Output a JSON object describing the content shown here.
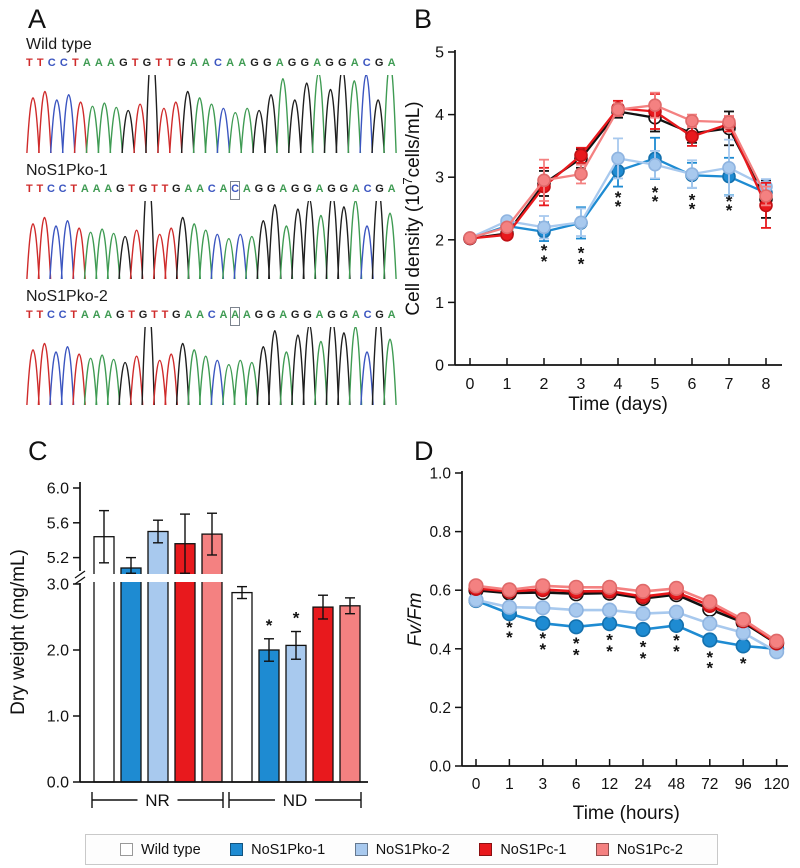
{
  "panel_labels": {
    "a": "A",
    "b": "B",
    "c": "C",
    "d": "D"
  },
  "palette": {
    "wild_type": "#111111",
    "ko1": "#1e8bd2",
    "ko2": "#a8c9ee",
    "pc1": "#e8191d",
    "pc2": "#f48181",
    "asterisk_dark": "#2287d3",
    "asterisk_light": "#a8c9ee"
  },
  "panel_a": {
    "base_colors": {
      "A": "#3f9b53",
      "C": "#3b55c0",
      "G": "#1f1f1f",
      "T": "#cf2b2b"
    },
    "tracks": [
      {
        "name": "Wild type",
        "sequence": "TTCCTAAAGTGTTGAACAAGGAGGAGGACGA",
        "boxed_index": -1
      },
      {
        "name": "NoS1Pko-1",
        "sequence": "TTCCTAAAGTGTTGAACACAGGAGGAGGACGA",
        "boxed_index": 18
      },
      {
        "name": "NoS1Pko-2",
        "sequence": "TTCCTAAAGTGTTGAACAAAGGAGGAGGACGA",
        "boxed_index": 18
      }
    ]
  },
  "chart_data": [
    {
      "id": "B",
      "type": "line",
      "title": "",
      "xlabel": "Time (days)",
      "ylabel": "Cell density (10⁷cells/mL)",
      "x": [
        0,
        1,
        2,
        3,
        4,
        5,
        6,
        7,
        8
      ],
      "ylim": [
        0,
        5
      ],
      "yticks": [
        0,
        1,
        2,
        3,
        4,
        5
      ],
      "grid": false,
      "series": [
        {
          "name": "Wild type",
          "color": "#111111",
          "fill": "#ffffff",
          "stroke": "#111111",
          "values": [
            2.02,
            2.1,
            2.9,
            3.3,
            4.05,
            3.95,
            3.7,
            3.78,
            2.65
          ],
          "errors": [
            0.03,
            0.05,
            0.2,
            0.15,
            0.1,
            0.22,
            0.15,
            0.27,
            0.3
          ]
        },
        {
          "name": "NoS1Pko-1",
          "color": "#1e8bd2",
          "fill": "#1e8bd2",
          "stroke": "#1470ad",
          "values": [
            2.02,
            2.22,
            2.13,
            2.27,
            3.1,
            3.3,
            3.03,
            3.01,
            2.75
          ],
          "errors": [
            0.03,
            0.05,
            0.15,
            0.25,
            0.25,
            0.33,
            0.2,
            0.3,
            0.15
          ]
        },
        {
          "name": "NoS1Pko-2",
          "color": "#a8c9ee",
          "fill": "#a8c9ee",
          "stroke": "#8fb4e0",
          "values": [
            2.03,
            2.3,
            2.2,
            2.28,
            3.3,
            3.2,
            3.05,
            3.15,
            2.85
          ],
          "errors": [
            0.03,
            0.05,
            0.18,
            0.22,
            0.32,
            0.22,
            0.22,
            0.45,
            0.12
          ]
        },
        {
          "name": "NoS1Pc-1",
          "color": "#e8191d",
          "fill": "#e8191d",
          "stroke": "#c01014",
          "values": [
            2.02,
            2.08,
            2.85,
            3.35,
            4.1,
            4.05,
            3.65,
            3.85,
            2.55
          ],
          "errors": [
            0.03,
            0.05,
            0.3,
            0.12,
            0.12,
            0.28,
            0.15,
            0.12,
            0.36
          ]
        },
        {
          "name": "NoS1Pc-2",
          "color": "#f48181",
          "fill": "#f48181",
          "stroke": "#df6a6a",
          "values": [
            2.03,
            2.2,
            2.95,
            3.05,
            4.08,
            4.15,
            3.9,
            3.88,
            2.7
          ],
          "errors": [
            0.03,
            0.05,
            0.33,
            0.15,
            0.1,
            0.2,
            0.1,
            0.1,
            0.15
          ]
        }
      ],
      "asterisks": [
        {
          "x": 2,
          "y": 1.84,
          "tone": "light"
        },
        {
          "x": 2,
          "y": 1.66,
          "tone": "dark"
        },
        {
          "x": 3,
          "y": 1.8,
          "tone": "light"
        },
        {
          "x": 3,
          "y": 1.62,
          "tone": "dark"
        },
        {
          "x": 4,
          "y": 2.68,
          "tone": "light"
        },
        {
          "x": 4,
          "y": 2.54,
          "tone": "dark"
        },
        {
          "x": 5,
          "y": 2.76,
          "tone": "light"
        },
        {
          "x": 5,
          "y": 2.62,
          "tone": "dark"
        },
        {
          "x": 6,
          "y": 2.64,
          "tone": "light"
        },
        {
          "x": 6,
          "y": 2.5,
          "tone": "dark"
        },
        {
          "x": 7,
          "y": 2.62,
          "tone": "light"
        },
        {
          "x": 7,
          "y": 2.48,
          "tone": "dark"
        }
      ]
    },
    {
      "id": "C",
      "type": "bar",
      "title": "",
      "xlabel": "",
      "ylabel": "Dry weight (mg/mL)",
      "groups": [
        "NR",
        "ND"
      ],
      "axis_break": {
        "lower_max": 3.2,
        "upper_min": 5.0
      },
      "yticks_lower": [
        0.0,
        1.0,
        2.0,
        3.0
      ],
      "yticks_upper": [
        5.2,
        5.6,
        6.0
      ],
      "ylim": [
        0,
        6
      ],
      "series": [
        {
          "name": "Wild type",
          "fill": "#ffffff",
          "values": [
            5.44,
            2.87
          ],
          "errors": [
            0.3,
            0.09
          ]
        },
        {
          "name": "NoS1Pko-1",
          "fill": "#1e8bd2",
          "values": [
            5.08,
            2.0
          ],
          "errors": [
            0.12,
            0.17
          ]
        },
        {
          "name": "NoS1Pko-2",
          "fill": "#a8c9ee",
          "values": [
            5.5,
            2.07
          ],
          "errors": [
            0.13,
            0.21
          ]
        },
        {
          "name": "NoS1Pc-1",
          "fill": "#e8191d",
          "values": [
            5.36,
            2.65
          ],
          "errors": [
            0.34,
            0.18
          ]
        },
        {
          "name": "NoS1Pc-2",
          "fill": "#f48181",
          "values": [
            5.47,
            2.67
          ],
          "errors": [
            0.24,
            0.12
          ]
        }
      ],
      "significance": [
        {
          "group_index": 1,
          "series_index": 1,
          "label": "*"
        },
        {
          "group_index": 1,
          "series_index": 2,
          "label": "*"
        }
      ]
    },
    {
      "id": "D",
      "type": "line",
      "title": "",
      "xlabel": "Time (hours)",
      "ylabel": "Fv/Fm",
      "x": [
        0,
        1,
        3,
        6,
        12,
        24,
        48,
        72,
        96,
        120
      ],
      "ylim": [
        0,
        1
      ],
      "yticks": [
        0.0,
        0.2,
        0.4,
        0.6,
        0.8,
        1.0
      ],
      "grid": false,
      "series": [
        {
          "name": "Wild type",
          "color": "#111111",
          "fill": "#ffffff",
          "stroke": "#111111",
          "values": [
            0.6,
            0.59,
            0.592,
            0.588,
            0.59,
            0.572,
            0.585,
            0.535,
            0.49,
            0.418
          ],
          "errors": [
            0.01,
            0.01,
            0.01,
            0.01,
            0.01,
            0.012,
            0.01,
            0.012,
            0.015,
            0.012
          ]
        },
        {
          "name": "NoS1Pko-1",
          "color": "#1e8bd2",
          "fill": "#1e8bd2",
          "stroke": "#1470ad",
          "values": [
            0.565,
            0.52,
            0.487,
            0.475,
            0.486,
            0.466,
            0.48,
            0.43,
            0.41,
            0.4
          ],
          "errors": [
            0.01,
            0.012,
            0.012,
            0.012,
            0.012,
            0.012,
            0.012,
            0.012,
            0.012,
            0.01
          ]
        },
        {
          "name": "NoS1Pko-2",
          "color": "#a8c9ee",
          "fill": "#a8c9ee",
          "stroke": "#8fb4e0",
          "values": [
            0.567,
            0.542,
            0.54,
            0.532,
            0.532,
            0.52,
            0.525,
            0.486,
            0.455,
            0.39
          ],
          "errors": [
            0.01,
            0.012,
            0.012,
            0.012,
            0.012,
            0.012,
            0.012,
            0.015,
            0.012,
            0.01
          ]
        },
        {
          "name": "NoS1Pc-1",
          "color": "#e8191d",
          "fill": "#e8191d",
          "stroke": "#c01014",
          "values": [
            0.606,
            0.596,
            0.602,
            0.596,
            0.597,
            0.578,
            0.592,
            0.548,
            0.496,
            0.42
          ],
          "errors": [
            0.01,
            0.01,
            0.01,
            0.01,
            0.01,
            0.01,
            0.01,
            0.012,
            0.012,
            0.01
          ]
        },
        {
          "name": "NoS1Pc-2",
          "color": "#f48181",
          "fill": "#f48181",
          "stroke": "#df6a6a",
          "values": [
            0.615,
            0.601,
            0.615,
            0.61,
            0.61,
            0.596,
            0.606,
            0.56,
            0.5,
            0.426
          ],
          "errors": [
            0.01,
            0.01,
            0.01,
            0.01,
            0.01,
            0.01,
            0.01,
            0.012,
            0.012,
            0.01
          ]
        }
      ],
      "asterisks": [
        {
          "x": 1,
          "y": 0.475,
          "tone": "light"
        },
        {
          "x": 1,
          "y": 0.44,
          "tone": "dark"
        },
        {
          "x": 3,
          "y": 0.437,
          "tone": "light"
        },
        {
          "x": 3,
          "y": 0.4,
          "tone": "dark"
        },
        {
          "x": 6,
          "y": 0.42,
          "tone": "light"
        },
        {
          "x": 6,
          "y": 0.38,
          "tone": "dark"
        },
        {
          "x": 12,
          "y": 0.432,
          "tone": "light"
        },
        {
          "x": 12,
          "y": 0.392,
          "tone": "dark"
        },
        {
          "x": 24,
          "y": 0.408,
          "tone": "light"
        },
        {
          "x": 24,
          "y": 0.368,
          "tone": "dark"
        },
        {
          "x": 48,
          "y": 0.43,
          "tone": "light"
        },
        {
          "x": 48,
          "y": 0.392,
          "tone": "dark"
        },
        {
          "x": 72,
          "y": 0.372,
          "tone": "light"
        },
        {
          "x": 72,
          "y": 0.336,
          "tone": "dark"
        },
        {
          "x": 96,
          "y": 0.352,
          "tone": "dark"
        }
      ]
    }
  ],
  "legend": {
    "items": [
      {
        "label": "Wild type",
        "color": "#ffffff"
      },
      {
        "label": "NoS1Pko-1",
        "color": "#1e8bd2"
      },
      {
        "label": "NoS1Pko-2",
        "color": "#a8c9ee"
      },
      {
        "label": "NoS1Pc-1",
        "color": "#e8191d"
      },
      {
        "label": "NoS1Pc-2",
        "color": "#f48181"
      }
    ]
  }
}
